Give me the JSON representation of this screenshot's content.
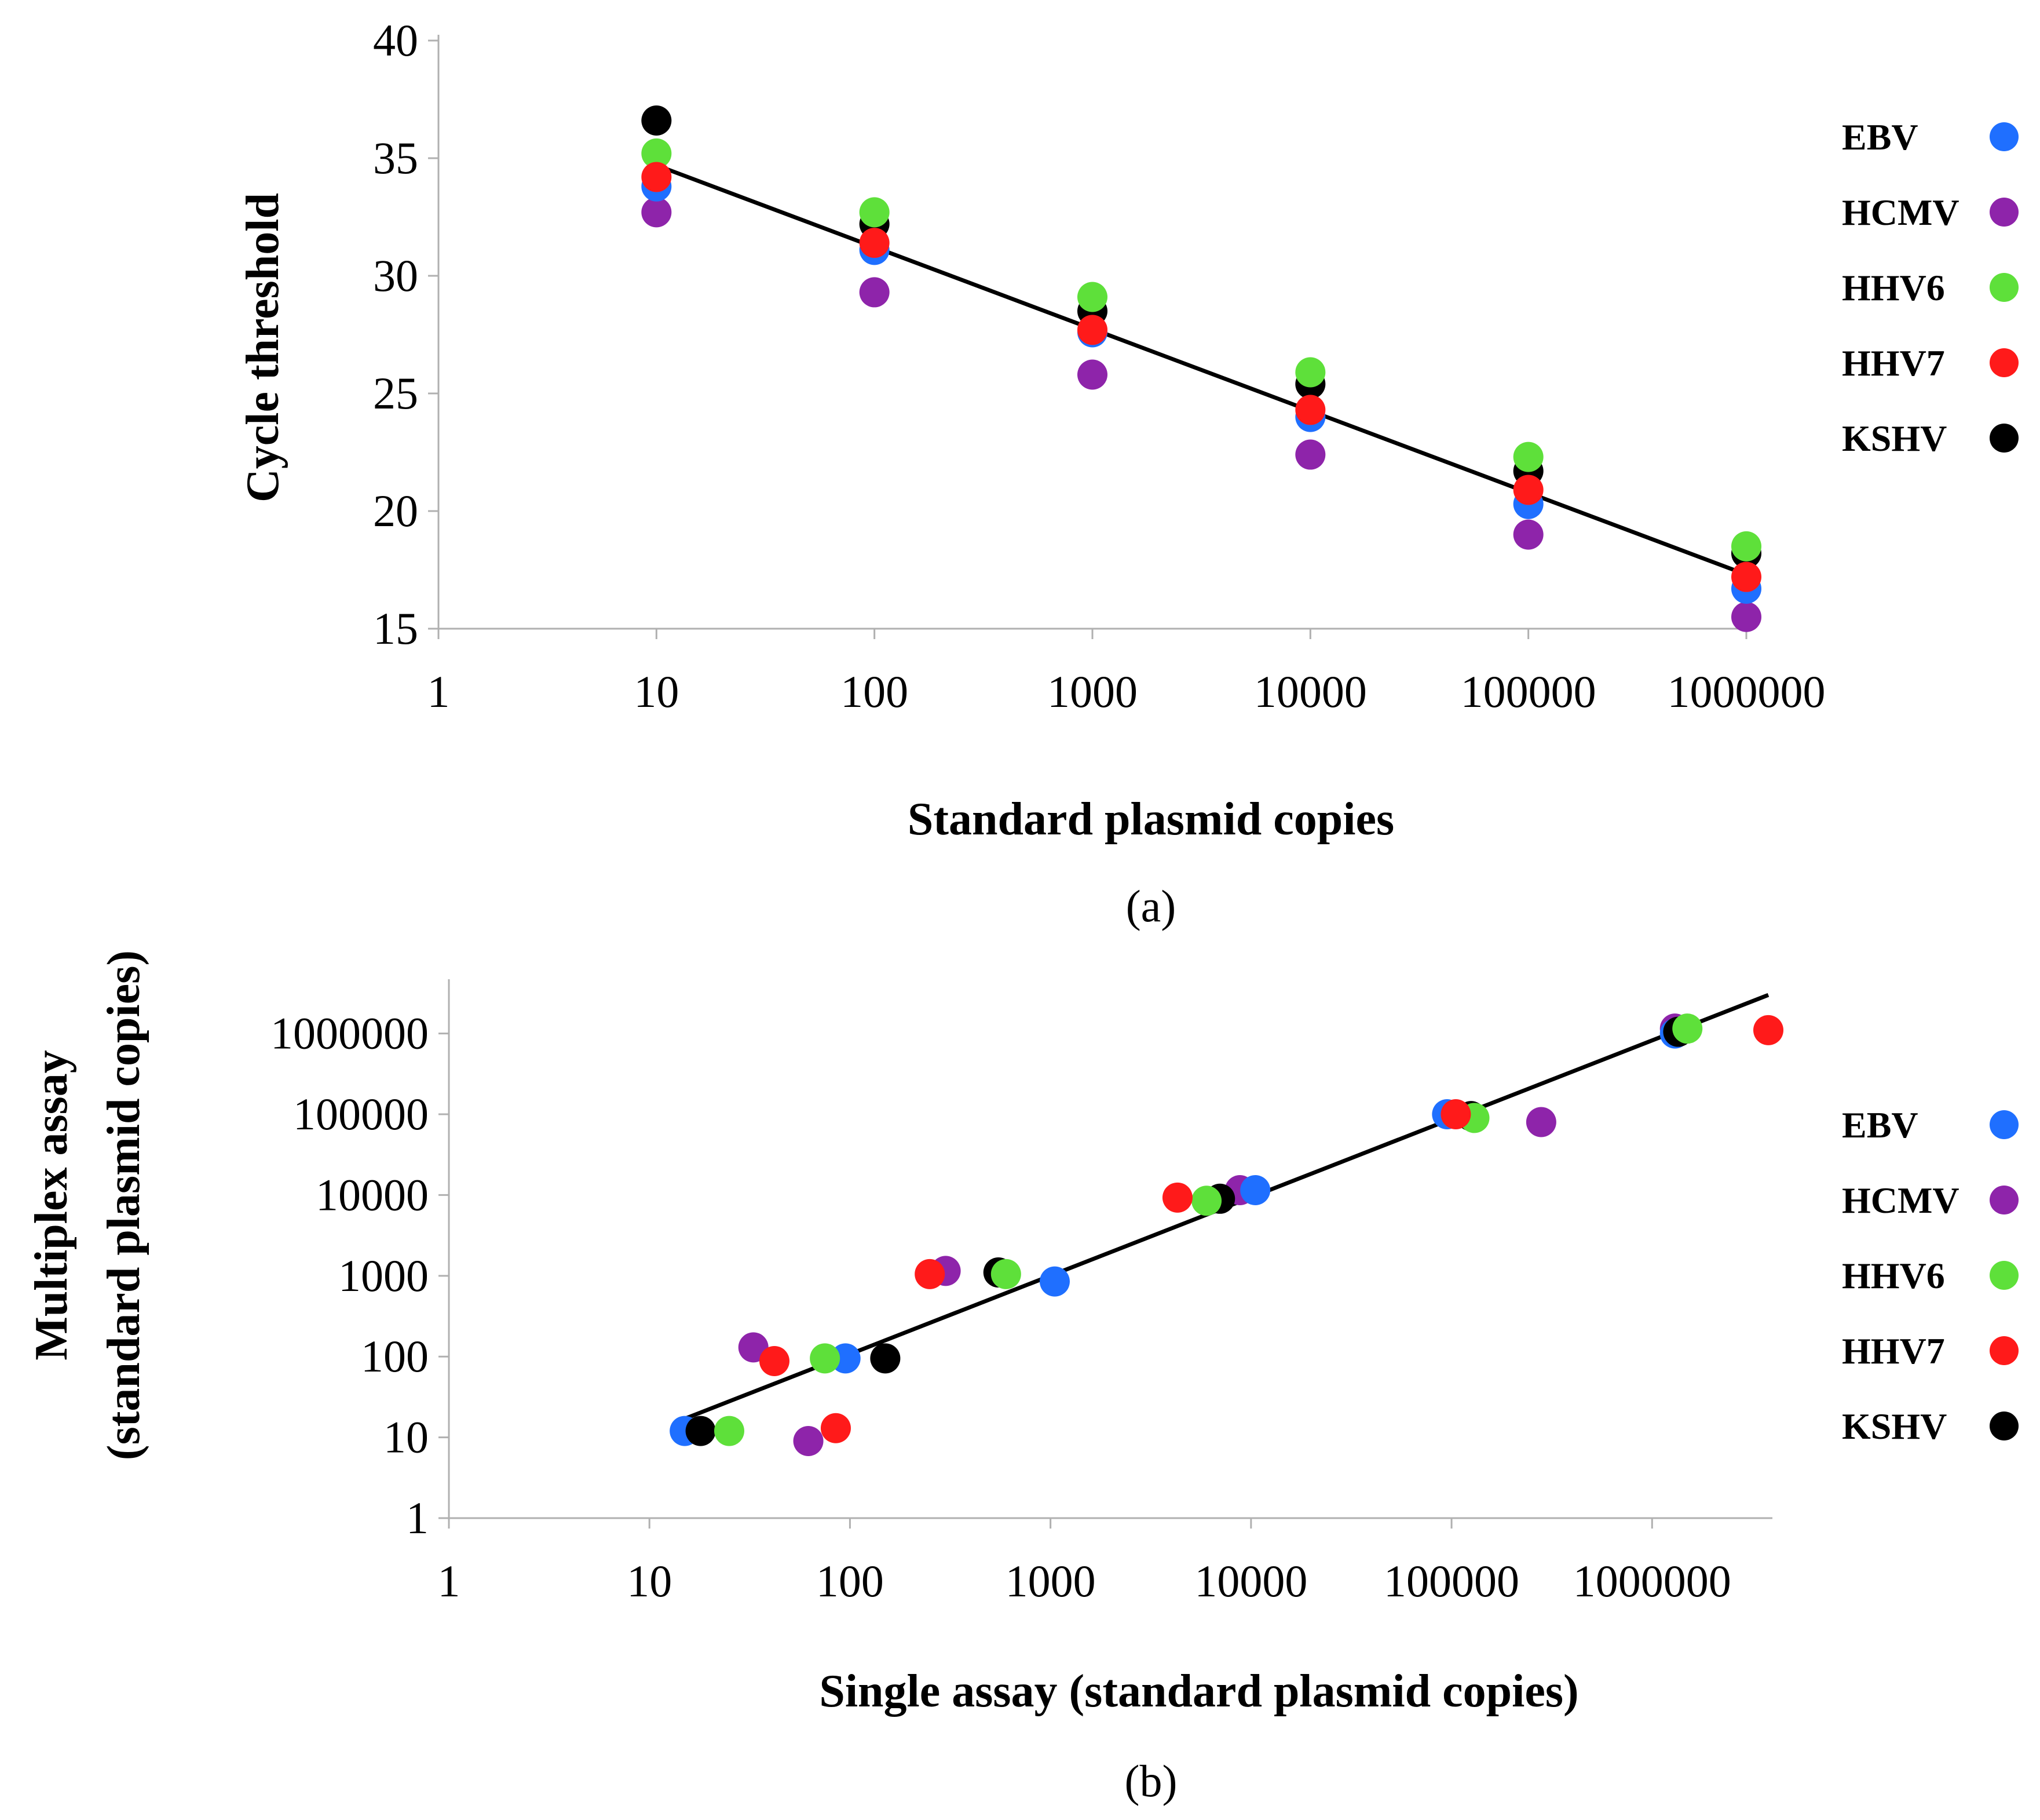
{
  "colors": {
    "EBV": "#1f6fff",
    "HCMV": "#8e24aa",
    "HHV6": "#5ee03a",
    "HHV7": "#ff1a1a",
    "KSHV": "#000000",
    "axis": "#b0b0b0",
    "fit_line": "#000000"
  },
  "chart_data": [
    {
      "type": "scatter",
      "caption": "(a)",
      "xlabel": "Standard plasmid copies",
      "ylabel": "Cycle threshold",
      "x_scale": "log",
      "xlim": [
        1,
        1000000
      ],
      "ylim": [
        15,
        40
      ],
      "x_ticks": [
        "1",
        "10",
        "100",
        "1000",
        "10000",
        "100000",
        "1000000"
      ],
      "y_ticks": [
        "15",
        "20",
        "25",
        "30",
        "35",
        "40"
      ],
      "legend": {
        "placement": "right",
        "entries": [
          "EBV",
          "HCMV",
          "HHV6",
          "HHV7",
          "KSHV"
        ]
      },
      "series": [
        {
          "name": "EBV",
          "x": [
            10,
            100,
            1000,
            10000,
            100000,
            1000000
          ],
          "y": [
            33.8,
            31.1,
            27.6,
            24.0,
            20.3,
            16.7
          ]
        },
        {
          "name": "HCMV",
          "x": [
            10,
            100,
            1000,
            10000,
            100000,
            1000000
          ],
          "y": [
            32.7,
            29.3,
            25.8,
            22.4,
            19.0,
            15.5
          ]
        },
        {
          "name": "HHV6",
          "x": [
            10,
            100,
            1000,
            10000,
            100000,
            1000000
          ],
          "y": [
            35.2,
            32.7,
            29.1,
            25.9,
            22.3,
            18.5
          ]
        },
        {
          "name": "HHV7",
          "x": [
            10,
            100,
            1000,
            10000,
            100000,
            1000000
          ],
          "y": [
            34.2,
            31.4,
            27.7,
            24.3,
            20.9,
            17.2
          ]
        },
        {
          "name": "KSHV",
          "x": [
            10,
            100,
            1000,
            10000,
            100000,
            1000000
          ],
          "y": [
            36.6,
            32.2,
            28.5,
            25.4,
            21.7,
            18.2
          ]
        }
      ],
      "trendline": {
        "x": [
          10,
          1000000
        ],
        "y": [
          34.7,
          17.3
        ]
      }
    },
    {
      "type": "scatter",
      "caption": "(b)",
      "xlabel": "Single assay (standard plasmid copies)",
      "ylabel_lines": [
        "Multiplex assay",
        "(standard plasmid copies)"
      ],
      "x_scale": "log",
      "y_scale": "log",
      "xlim": [
        1,
        4000000
      ],
      "ylim": [
        1,
        4000000
      ],
      "x_ticks": [
        "1",
        "10",
        "100",
        "1000",
        "10000",
        "100000",
        "1000000"
      ],
      "y_ticks": [
        "1",
        "10",
        "100",
        "1000",
        "10000",
        "100000",
        "1000000"
      ],
      "legend": {
        "placement": "right",
        "entries": [
          "EBV",
          "HCMV",
          "HHV6",
          "HHV7",
          "KSHV"
        ]
      },
      "series": [
        {
          "name": "EBV",
          "x": [
            15,
            95,
            1050,
            10500,
            95000,
            1300000
          ],
          "y": [
            12,
            95,
            850,
            11500,
            100000,
            1000000
          ]
        },
        {
          "name": "HCMV",
          "x": [
            62,
            33,
            300,
            8800,
            280000,
            1300000
          ],
          "y": [
            9,
            130,
            1150,
            11500,
            80000,
            1150000
          ]
        },
        {
          "name": "HHV6",
          "x": [
            25,
            75,
            600,
            6000,
            130000,
            1500000
          ],
          "y": [
            12,
            95,
            1050,
            8500,
            90000,
            1150000
          ]
        },
        {
          "name": "HHV7",
          "x": [
            85,
            42,
            250,
            4300,
            105000,
            3800000
          ],
          "y": [
            13,
            88,
            1050,
            9300,
            100000,
            1100000
          ]
        },
        {
          "name": "KSHV",
          "x": [
            18,
            150,
            550,
            7000,
            125000,
            1350000
          ],
          "y": [
            12,
            95,
            1100,
            9000,
            95000,
            1050000
          ]
        }
      ],
      "trendline": {
        "x": [
          15,
          3800000
        ],
        "y": [
          17,
          3000000
        ]
      }
    }
  ]
}
